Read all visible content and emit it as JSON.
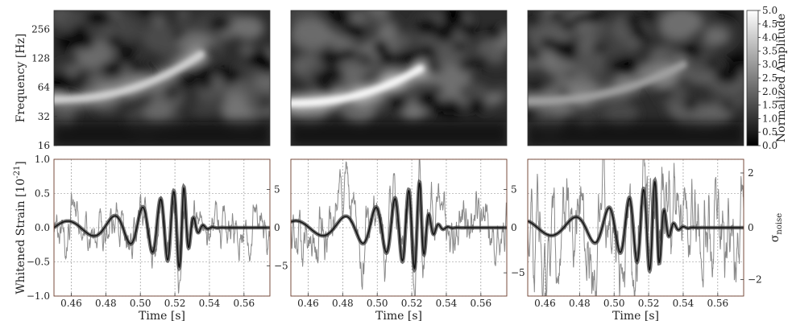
{
  "chart_data": [
    {
      "type": "heatmap",
      "panel": "spectrogram",
      "ylabel": "Frequency [Hz]",
      "yscale": "log2",
      "ylim": [
        16,
        400
      ],
      "yticks": [
        "16",
        "32",
        "64",
        "128",
        "256"
      ],
      "xlim": [
        0.45,
        0.575
      ],
      "colorbar": {
        "label": "Normalized Amplitude",
        "range": [
          0.0,
          5.0
        ],
        "ticks": [
          "0.0",
          "0.5",
          "1.0",
          "1.5",
          "2.0",
          "2.5",
          "3.0",
          "3.5",
          "4.0",
          "4.5",
          "5.0"
        ]
      },
      "tracks": [
        {
          "x0": 0.45,
          "x1": 0.535,
          "f0": 48,
          "f1": 140,
          "peak": 3.8
        },
        {
          "x0": 0.45,
          "x1": 0.525,
          "f0": 44,
          "f1": 100,
          "peak": 5.0
        },
        {
          "x0": 0.45,
          "x1": 0.54,
          "f0": 46,
          "f1": 110,
          "peak": 2.2
        }
      ]
    },
    {
      "type": "line",
      "panel": "whitened-strain",
      "ylabel": "Whitened Strain  [10",
      "ylabel_exp": "-21",
      "ylabel_close": "]",
      "right_ylabel": "σ",
      "right_ylabel_sub": "noise",
      "xlabel": "Time [s]",
      "xlim": [
        0.45,
        0.575
      ],
      "ylim": [
        -1.0,
        1.0
      ],
      "xticks": [
        "0.46",
        "0.48",
        "0.50",
        "0.52",
        "0.54",
        "0.56"
      ],
      "yticks": [
        "−1.0",
        "−0.5",
        "0.0",
        "0.5",
        "1.0"
      ],
      "right_ticks": [
        [
          "5",
          "0",
          "−5"
        ],
        [
          "5",
          "0",
          "−5"
        ],
        [
          "2",
          "0",
          "−2"
        ]
      ],
      "grid": true,
      "series": [
        {
          "role": "noisy-data",
          "color": "#8a8a8a"
        },
        {
          "role": "reconstruction-band",
          "color": "#444444"
        },
        {
          "role": "model-waveform",
          "color": "#111111"
        }
      ],
      "waveform": {
        "t_merger": 0.525,
        "f0_hz": 32,
        "f1_hz": 180,
        "peak_amplitude": 0.7
      }
    }
  ]
}
